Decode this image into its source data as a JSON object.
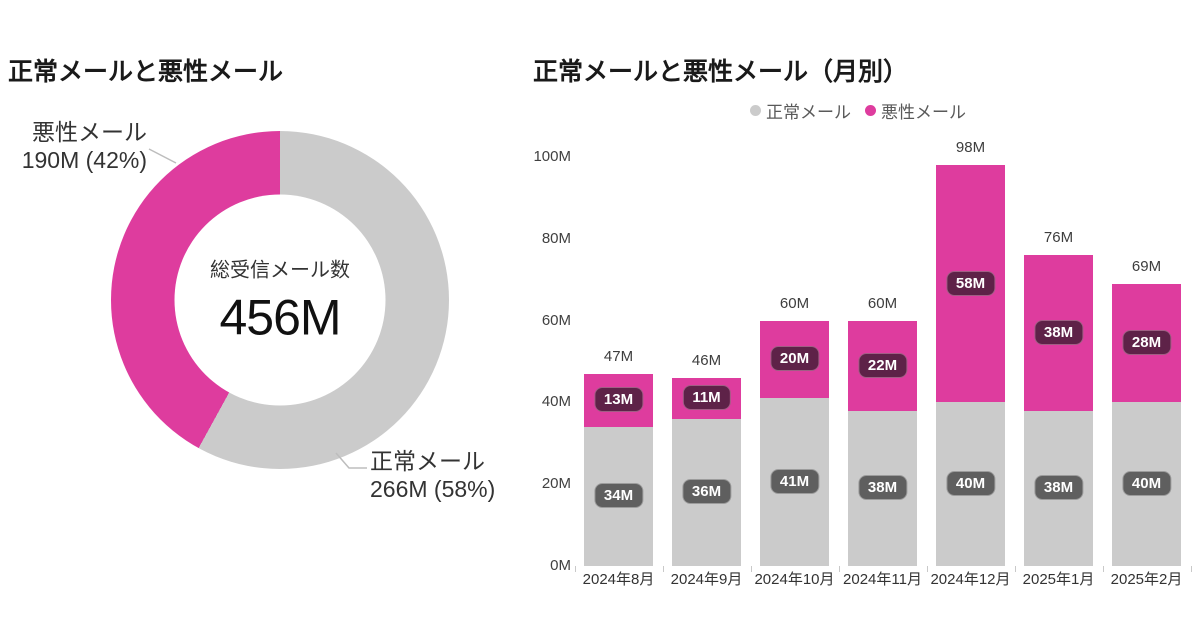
{
  "colors": {
    "normal_gray": "#CBCBCB",
    "malicious_magenta": "#DE3C9E",
    "pill_gray_bg": "#5F5F5F",
    "pill_gray_border": "#9C9C9C",
    "pill_magenta_bg": "#5E2248",
    "pill_magenta_border": "#A05E84",
    "connector_line": "#BDBDBD"
  },
  "donut_section": {
    "callout_malicious_line1": "悪性メール",
    "callout_malicious_line2": "190M (42%)",
    "callout_normal_line1": "正常メール",
    "callout_normal_line2": "266M (58%)"
  },
  "chart_data": [
    {
      "type": "pie",
      "subtype": "donut",
      "title": "正常メールと悪性メール",
      "labels": [
        "正常メール",
        "悪性メール"
      ],
      "values_millions": [
        266,
        190
      ],
      "percents": [
        58,
        42
      ],
      "value_labels": [
        "266M (58%)",
        "190M (42%)"
      ],
      "center_label": "総受信メール数",
      "center_value": "456M",
      "colors": [
        "#CBCBCB",
        "#DE3C9E"
      ],
      "rotation": "gray slice clockwise from 12 o'clock, magenta fills remainder"
    },
    {
      "type": "bar",
      "stacked": true,
      "title": "正常メールと悪性メール（月別）",
      "categories": [
        "2024年8月",
        "2024年9月",
        "2024年10月",
        "2024年11月",
        "2024年12月",
        "2025年1月",
        "2025年2月"
      ],
      "series": [
        {
          "name": "正常メール",
          "color": "#CBCBCB",
          "values": [
            34,
            36,
            41,
            38,
            40,
            38,
            40
          ],
          "data_labels": [
            "34M",
            "36M",
            "41M",
            "38M",
            "40M",
            "38M",
            "40M"
          ]
        },
        {
          "name": "悪性メール",
          "color": "#DE3C9E",
          "values": [
            13,
            11,
            20,
            22,
            58,
            38,
            28
          ],
          "data_labels": [
            "13M",
            "11M",
            "20M",
            "22M",
            "58M",
            "38M",
            "28M"
          ]
        }
      ],
      "totals": [
        47,
        46,
        60,
        60,
        98,
        76,
        69
      ],
      "total_labels": [
        "47M",
        "46M",
        "60M",
        "60M",
        "98M",
        "76M",
        "69M"
      ],
      "ylim": [
        0,
        100
      ],
      "y_tick_values": [
        0,
        20,
        40,
        60,
        80,
        100
      ],
      "y_ticks": [
        "0M",
        "20M",
        "40M",
        "60M",
        "80M",
        "100M"
      ],
      "grid": false,
      "legend_position": "top-right"
    }
  ]
}
